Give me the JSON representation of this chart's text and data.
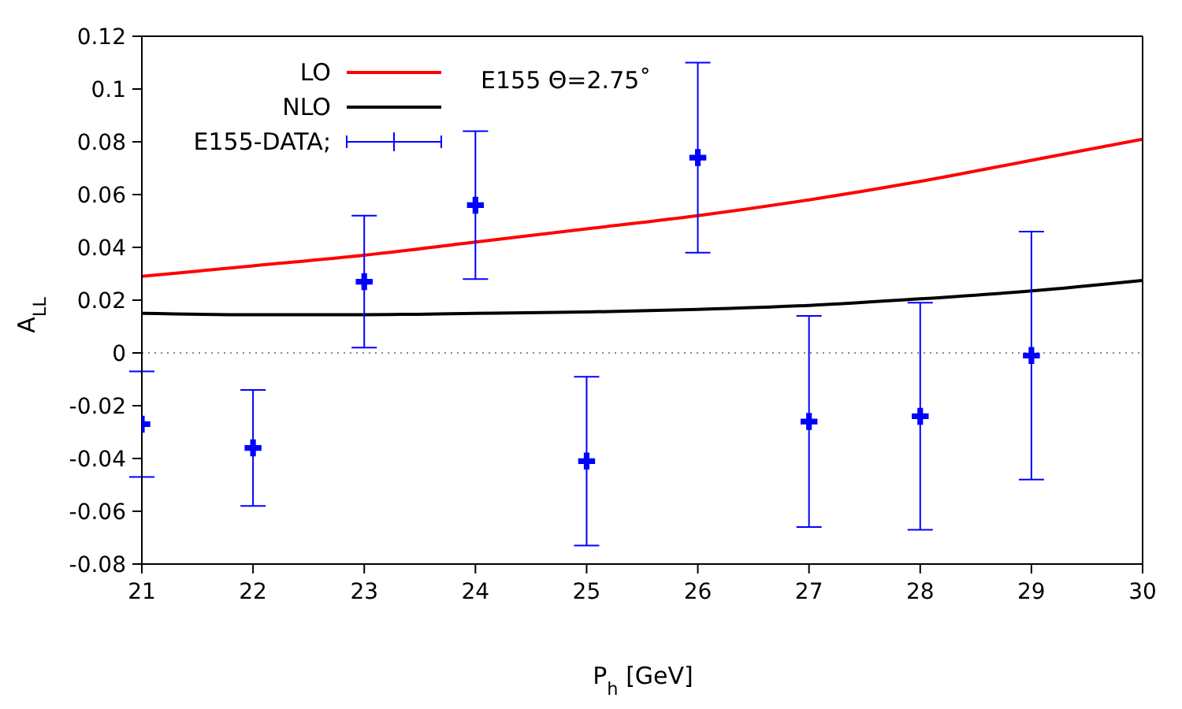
{
  "chart_data": {
    "type": "line",
    "xlabel": "P$_{h}$ [GeV]",
    "ylabel": "A$_{LL}$",
    "annotations": [
      "E155 Θ=2.75˚"
    ],
    "xlim": [
      21,
      30
    ],
    "xticks": [
      21,
      22,
      23,
      24,
      25,
      26,
      27,
      28,
      29,
      30
    ],
    "ylim": [
      -0.08,
      0.12
    ],
    "yticks": [
      -0.08,
      -0.06,
      -0.04,
      -0.02,
      0,
      0.02,
      0.04,
      0.06,
      0.08,
      0.1,
      0.12
    ],
    "grid": false,
    "legend": "top left",
    "ref_lines": [
      {
        "axis": "y",
        "value": 0,
        "line_style": "dotted",
        "color": "#888888"
      }
    ],
    "series": [
      {
        "name": "LO",
        "color": "#ff0000",
        "x": [
          21,
          22,
          23,
          24,
          25,
          26,
          27,
          28,
          29,
          30
        ],
        "values": [
          0.029,
          0.033,
          0.037,
          0.042,
          0.047,
          0.052,
          0.058,
          0.065,
          0.073,
          0.081
        ]
      },
      {
        "name": "NLO",
        "color": "#000000",
        "x": [
          21,
          22,
          23,
          24,
          25,
          26,
          27,
          28,
          29,
          30
        ],
        "values": [
          0.015,
          0.0145,
          0.0145,
          0.015,
          0.0155,
          0.0165,
          0.018,
          0.0205,
          0.0235,
          0.0275
        ]
      },
      {
        "name": "E155-DATA;",
        "type": "scatter",
        "marker": "cross",
        "color": "#0000ff",
        "x": [
          21,
          22,
          23,
          24,
          25,
          26,
          27,
          28,
          29
        ],
        "values": [
          -0.027,
          -0.036,
          0.027,
          0.056,
          -0.041,
          0.074,
          -0.026,
          -0.024,
          -0.001
        ],
        "errors": [
          [
            -0.047,
            -0.007
          ],
          [
            -0.058,
            -0.014
          ],
          [
            0.002,
            0.052
          ],
          [
            0.028,
            0.084
          ],
          [
            -0.073,
            -0.009
          ],
          [
            0.038,
            0.11
          ],
          [
            -0.066,
            0.014
          ],
          [
            -0.067,
            0.019
          ],
          [
            -0.048,
            0.046
          ]
        ]
      }
    ]
  }
}
